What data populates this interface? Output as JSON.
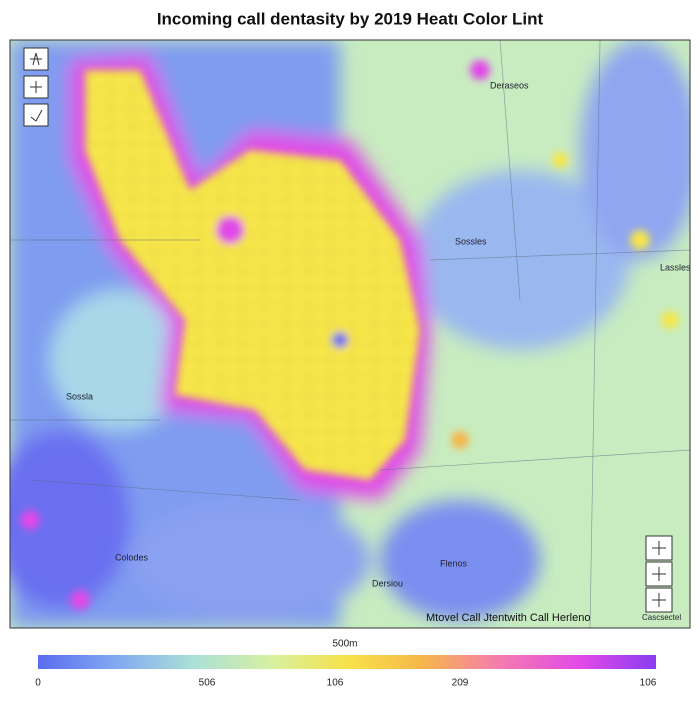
{
  "header": {
    "title": "Incoming call dentasity by 2019 Heatι Color Lint"
  },
  "map": {
    "labels": [
      "Deraseos",
      "Sossles",
      "Lassles",
      "Sossla",
      "Colodes",
      "Flenos",
      "Dersiou"
    ],
    "caption": "Mtovel Call Jtentwith Call Herleno",
    "corner_label": "Cascsectel"
  },
  "legend": {
    "scale_label": "500m",
    "ticks": [
      "0",
      "506",
      "106",
      "209",
      "106"
    ]
  }
}
